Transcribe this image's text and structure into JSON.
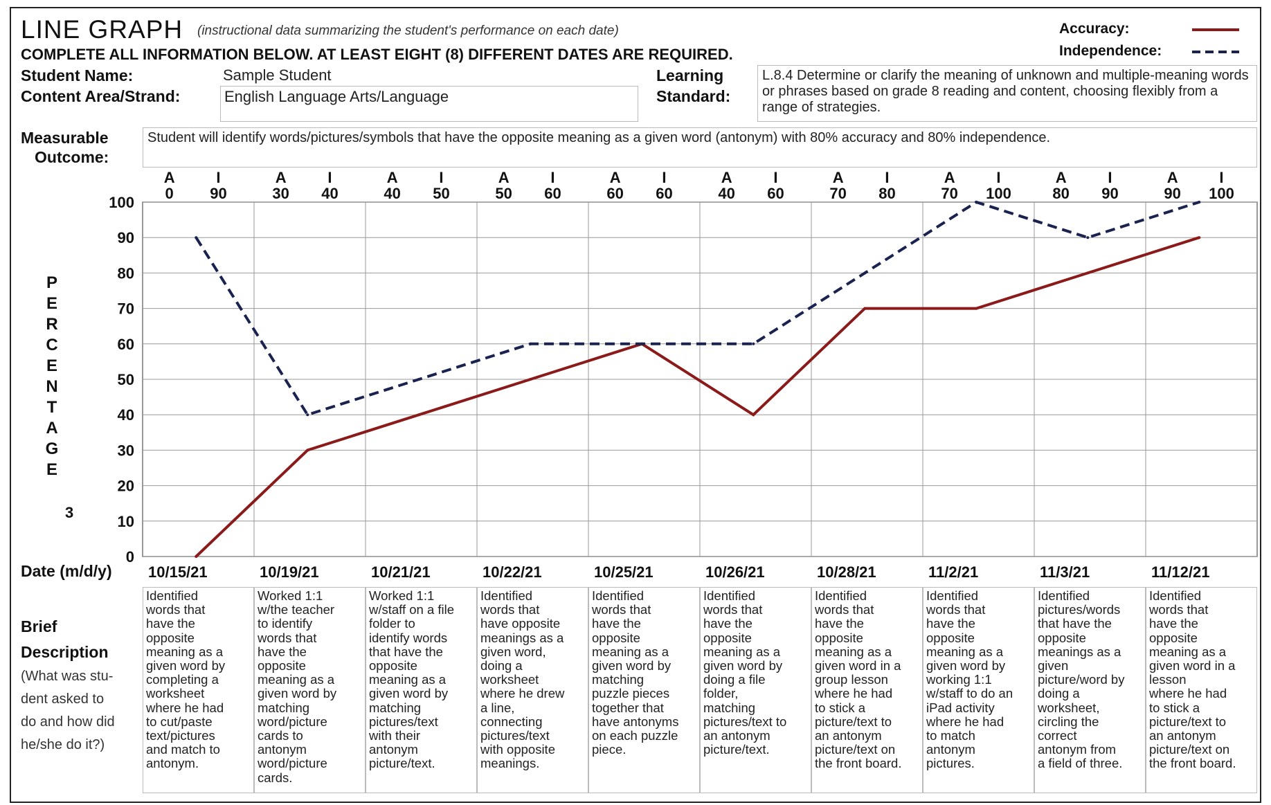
{
  "header": {
    "title": "LINE GRAPH",
    "subtitle": "(instructional data summarizing the student's performance on each date)",
    "instruction": "COMPLETE ALL INFORMATION BELOW. AT LEAST EIGHT (8) DIFFERENT DATES ARE REQUIRED."
  },
  "legend": {
    "accuracy_label": "Accuracy:",
    "independence_label": "Independence:",
    "accuracy_color": "#8b1a1a",
    "independence_color": "#1a2250"
  },
  "student": {
    "name_label": "Student Name:",
    "name_value": "Sample Student",
    "content_label": "Content Area/Strand:",
    "content_value": "English Language Arts/Language"
  },
  "standard": {
    "label_line1": "Learning",
    "label_line2": "Standard:",
    "text": "L.8.4 Determine or clarify the meaning of unknown and multiple-meaning words or phrases based on grade 8 reading and content, choosing flexibly from a range of strategies."
  },
  "outcome": {
    "label_line1": "Measurable",
    "label_line2": "Outcome:",
    "text": "Student will identify words/pictures/symbols  that have the opposite meaning as a given word (antonym) with 80% accuracy and 80% independence."
  },
  "y_axis_letters": [
    "P",
    "E",
    "R",
    "C",
    "E",
    "N",
    "T",
    "A",
    "G",
    "E"
  ],
  "y_axis_extra": "3",
  "date_label": "Date (m/d/y)",
  "description_label": {
    "line1": "Brief",
    "line2": "Description",
    "line3": "(What was stu-",
    "line4": "dent asked to",
    "line5": "do and how did",
    "line6": "he/she do it?)"
  },
  "column_header_a": "A",
  "column_header_i": "I",
  "chart_data": {
    "type": "line",
    "x": [
      "10/15/21",
      "10/19/21",
      "10/21/21",
      "10/22/21",
      "10/25/21",
      "10/26/21",
      "10/28/21",
      "11/2/21",
      "11/3/21",
      "11/12/21"
    ],
    "series": [
      {
        "name": "Accuracy",
        "values": [
          0,
          30,
          40,
          50,
          60,
          40,
          70,
          70,
          80,
          90
        ],
        "style": "solid",
        "color": "#8b1a1a"
      },
      {
        "name": "Independence",
        "values": [
          90,
          40,
          50,
          60,
          60,
          60,
          80,
          100,
          90,
          100
        ],
        "style": "dashed",
        "color": "#1a2250"
      }
    ],
    "ylim": [
      0,
      100
    ],
    "yticks": [
      0,
      10,
      20,
      30,
      40,
      50,
      60,
      70,
      80,
      90,
      100
    ],
    "grid": true,
    "legend_position": "top-right"
  },
  "descriptions": [
    "Identified\nwords that\nhave the\nopposite\nmeaning as a\ngiven word by\ncompleting a\nworksheet\nwhere he had\nto cut/paste\ntext/pictures\nand match to\nantonym.",
    "Worked 1:1\nw/the teacher\nto identify\nwords that\nhave the\nopposite\nmeaning as a\ngiven word by\nmatching\nword/picture\ncards to\nantonym\nword/picture\ncards.",
    "Worked 1:1\nw/staff on a file\nfolder to\nidentify words\nthat have the\nopposite\nmeaning as a\ngiven word by\nmatching\npictures/text\nwith their\nantonym\npicture/text.",
    "Identified\nwords that\nhave opposite\nmeanings as a\ngiven word,\ndoing a\nworksheet\nwhere he drew\na line,\nconnecting\npictures/text\nwith opposite\nmeanings.",
    "Identified\nwords that\nhave the\nopposite\nmeaning as a\ngiven word by\nmatching\npuzzle pieces\ntogether that\nhave antonyms\non each puzzle\npiece.",
    "Identified\nwords that\nhave the\nopposite\nmeaning as a\ngiven word by\ndoing a file\nfolder,\nmatching\npictures/text to\nan antonym\npicture/text.",
    "Identified\nwords that\nhave the\nopposite\nmeaning as a\ngiven word in a\ngroup lesson\nwhere he had\nto stick a\npicture/text to\nan antonym\npicture/text on\nthe front board.",
    "Identified\nwords that\nhave the\nopposite\nmeaning as a\ngiven word by\nworking 1:1\nw/staff to do an\niPad activity\nwhere he had\nto match\nantonym\npictures.",
    "Identified\npictures/words\nthat have the\nopposite\nmeanings as a\ngiven\npicture/word by\ndoing a\nworksheet,\ncircling the\ncorrect\nantonym from\na field of three.",
    "Identified\nwords that\nhave the\nopposite\nmeaning as a\ngiven word in a\nlesson\nwhere he had\nto stick a\npicture/text to\nan antonym\npicture/text on\nthe front board."
  ]
}
